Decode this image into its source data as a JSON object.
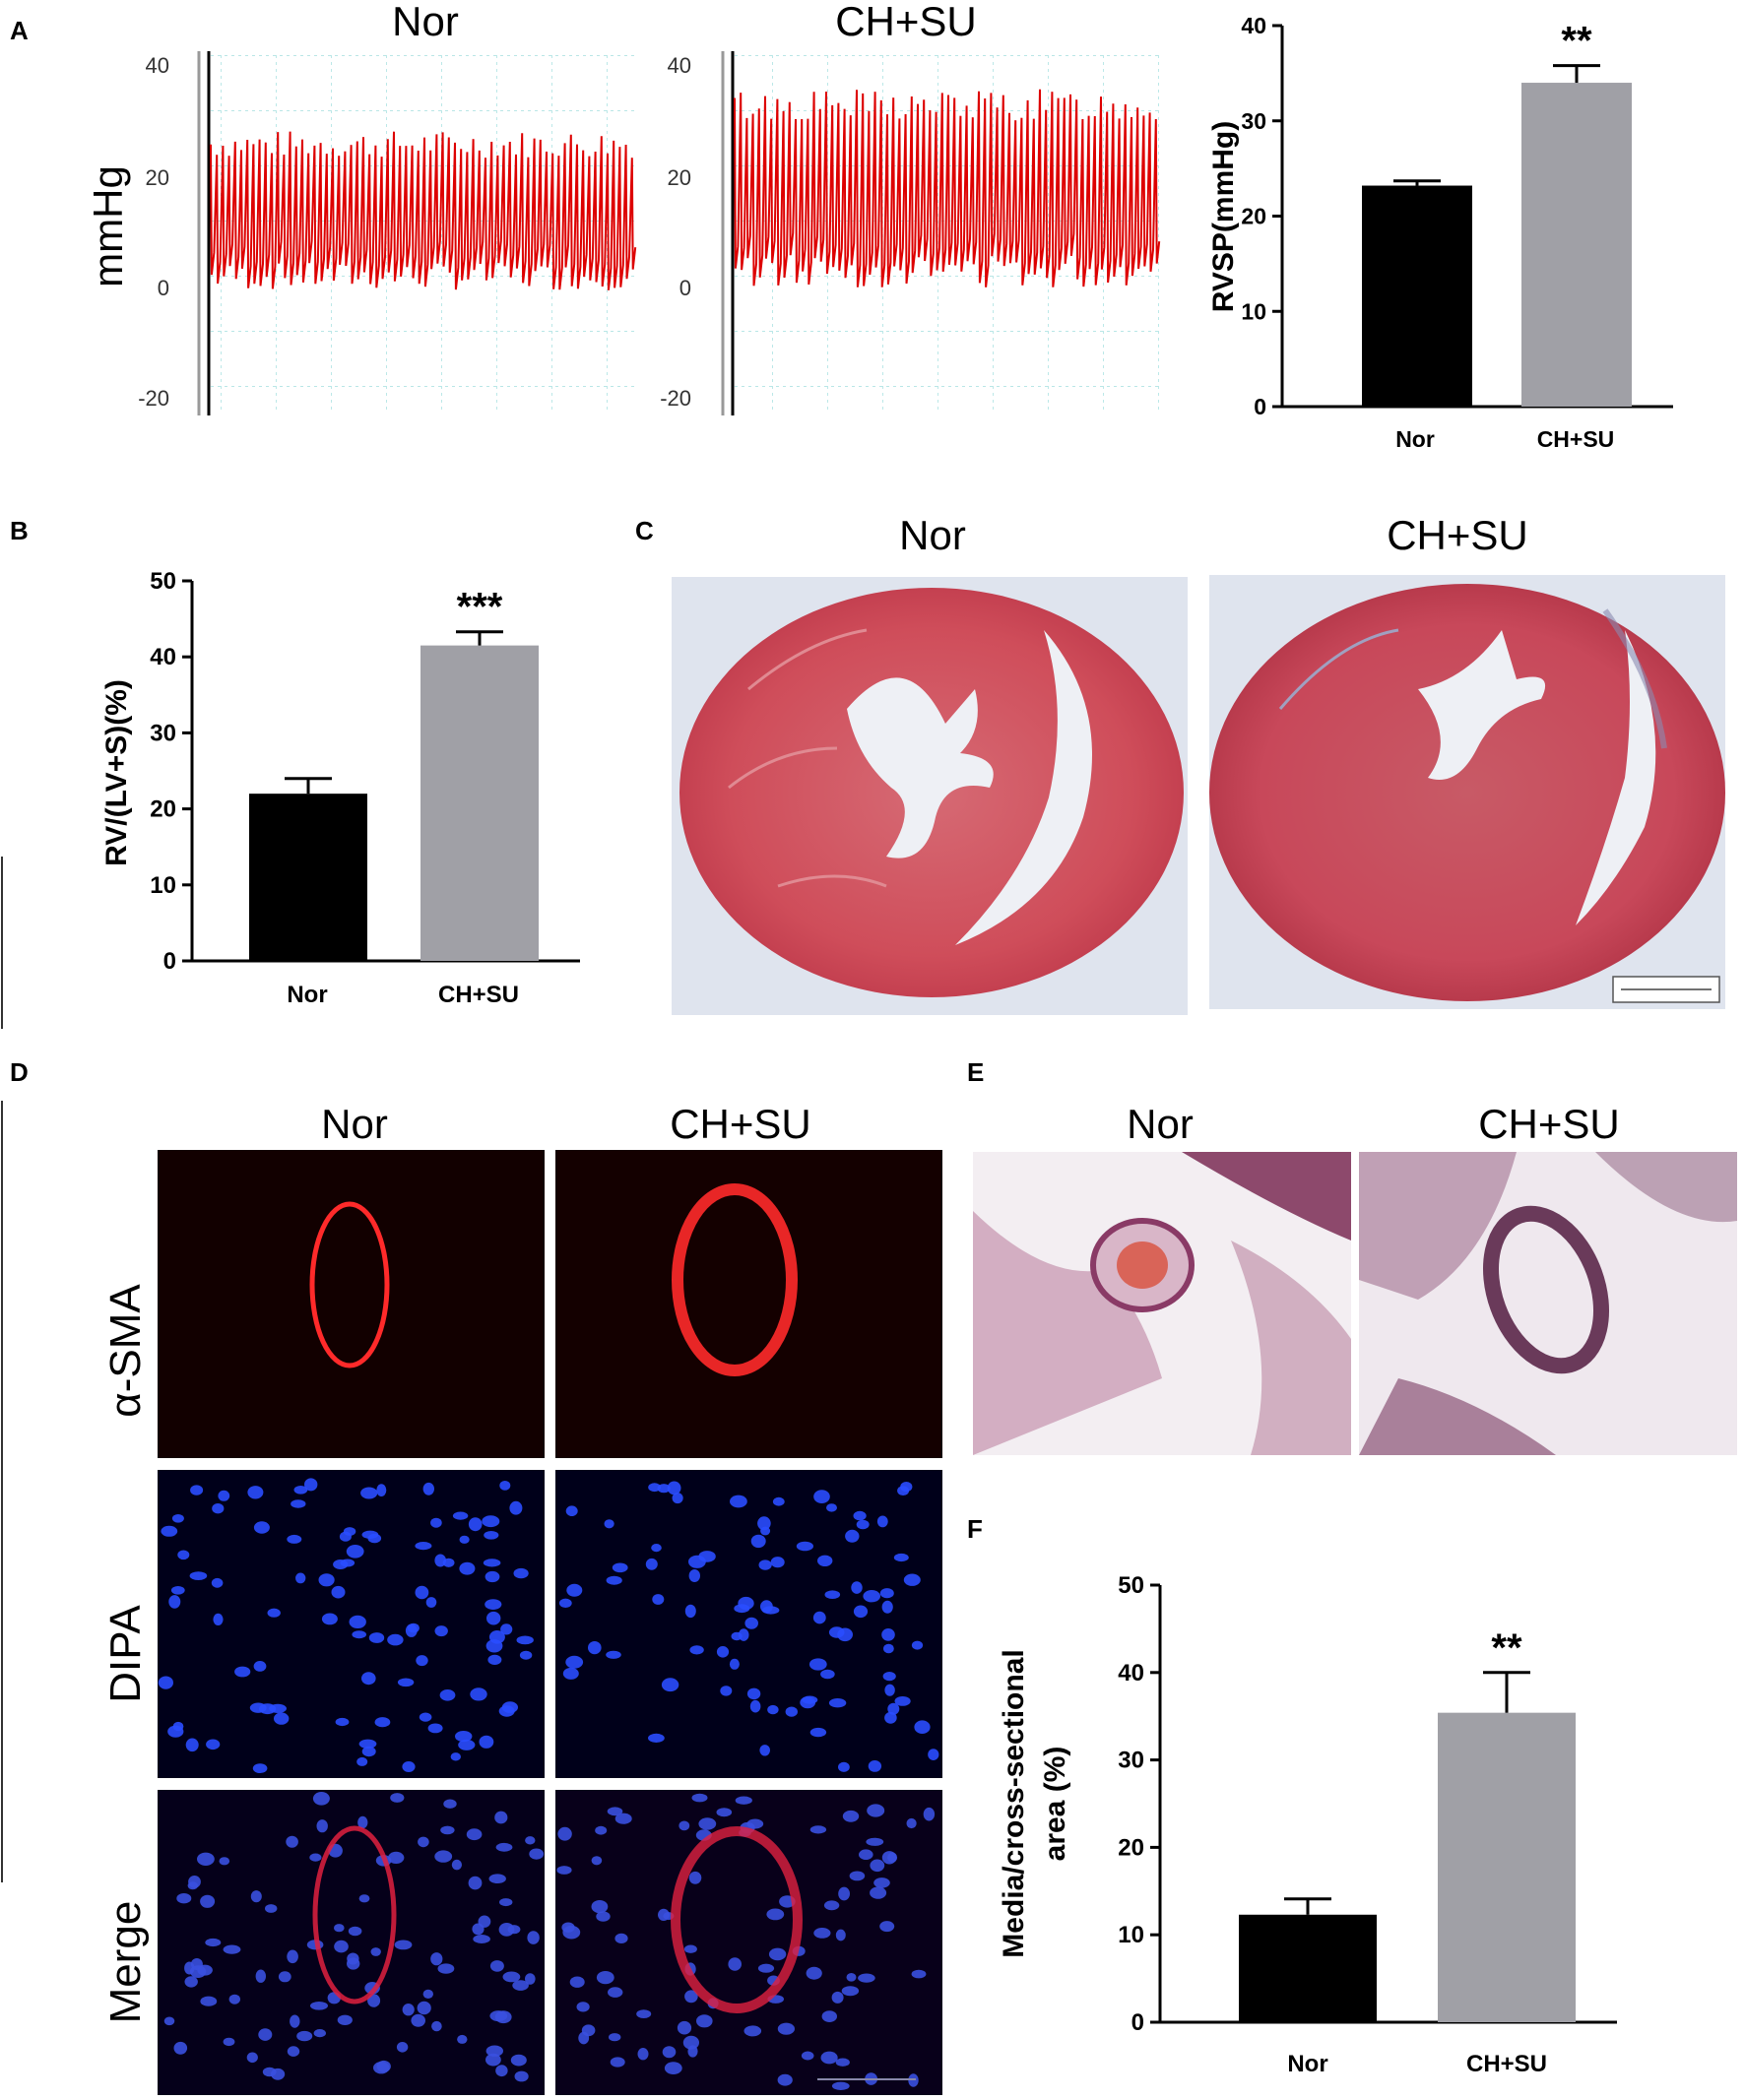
{
  "panels": {
    "A": {
      "label": "A",
      "trace_titles": [
        "Nor",
        "CH+SU"
      ],
      "trace_ylabel": "mmHg",
      "trace_ticks": [
        "40",
        "20",
        "0",
        "-20"
      ],
      "trace_color": "#dd0000"
    },
    "B": {
      "label": "B"
    },
    "C": {
      "label": "C",
      "titles": [
        "Nor",
        "CH+SU"
      ]
    },
    "D": {
      "label": "D",
      "titles": [
        "Nor",
        "CH+SU"
      ],
      "rows": [
        "α-SMA",
        "DIPA",
        "Merge"
      ]
    },
    "E": {
      "label": "E",
      "titles": [
        "Nor",
        "CH+SU"
      ]
    },
    "F": {
      "label": "F"
    }
  },
  "chart_data": [
    {
      "panel": "A",
      "type": "bar",
      "categories": [
        "Nor",
        "CH+SU"
      ],
      "values": [
        23.2,
        34.0
      ],
      "errors": [
        0.5,
        1.8
      ],
      "colors": [
        "#000000",
        "#a0a0a6"
      ],
      "significance": [
        "",
        "**"
      ],
      "ylabel": "RVSP(mmHg)",
      "ylim": [
        0,
        40
      ],
      "yticks": [
        0,
        10,
        20,
        30,
        40
      ]
    },
    {
      "panel": "B",
      "type": "bar",
      "categories": [
        "Nor",
        "CH+SU"
      ],
      "values": [
        22.0,
        41.5
      ],
      "errors": [
        2.0,
        1.8
      ],
      "colors": [
        "#000000",
        "#a0a0a6"
      ],
      "significance": [
        "",
        "***"
      ],
      "ylabel": "RV/(LV+S)(%)",
      "ylim": [
        0,
        50
      ],
      "yticks": [
        0,
        10,
        20,
        30,
        40,
        50
      ]
    },
    {
      "panel": "F",
      "type": "bar",
      "categories": [
        "Nor",
        "CH+SU"
      ],
      "values": [
        12.3,
        35.4
      ],
      "errors": [
        1.8,
        4.6
      ],
      "colors": [
        "#000000",
        "#a0a0a6"
      ],
      "significance": [
        "",
        "**"
      ],
      "ylabel": [
        "Media/cross-sectional",
        "area (%)"
      ],
      "ylim": [
        0,
        50
      ],
      "yticks": [
        0,
        10,
        20,
        30,
        40,
        50
      ]
    }
  ]
}
